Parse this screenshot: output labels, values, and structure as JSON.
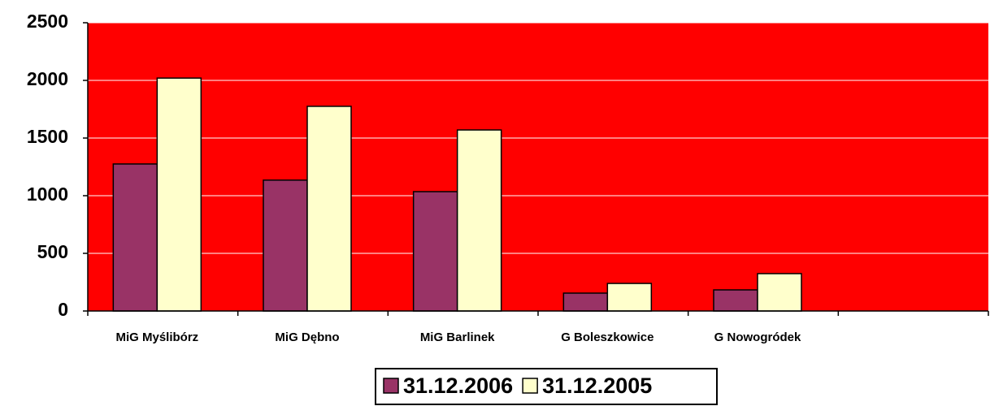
{
  "chart_data": {
    "type": "bar",
    "categories": [
      "MiG Myślibórz",
      "MiG Dębno",
      "MiG Barlinek",
      "G Boleszkowice",
      "G Nowogródek",
      null
    ],
    "series": [
      {
        "name": "31.12.2006",
        "color": "#993366",
        "values": [
          1275,
          1135,
          1035,
          155,
          183,
          null
        ]
      },
      {
        "name": "31.12.2005",
        "color": "#FFFFCC",
        "values": [
          2020,
          1775,
          1570,
          239,
          324,
          null
        ]
      }
    ],
    "ylim": [
      0,
      2500
    ],
    "yticks": [
      0,
      500,
      1000,
      1500,
      2000,
      2500
    ],
    "grid": true,
    "plot_color": "#FF0000",
    "legend": "bottom"
  }
}
